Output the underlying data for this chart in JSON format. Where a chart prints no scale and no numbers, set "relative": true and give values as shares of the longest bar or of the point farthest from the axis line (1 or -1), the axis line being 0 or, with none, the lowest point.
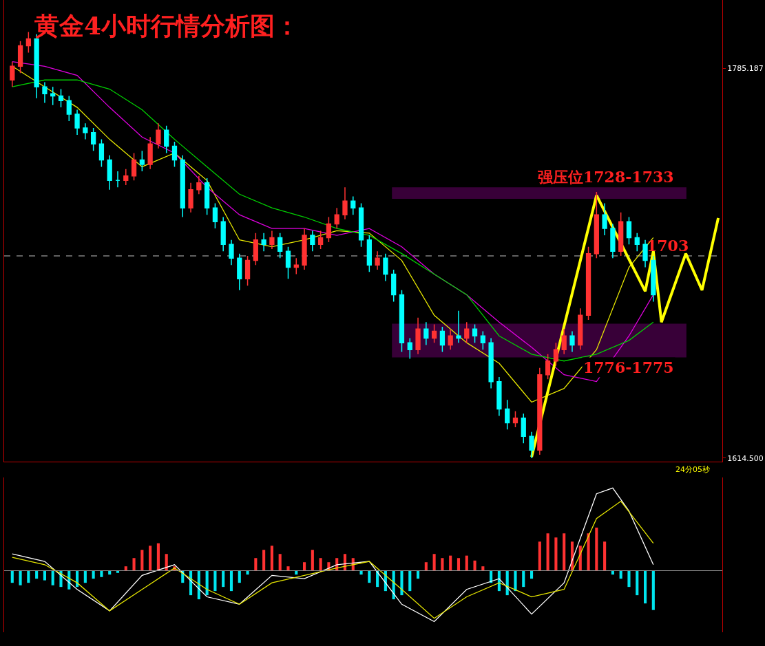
{
  "chart_data": [
    {
      "type": "candlestick",
      "title": "黄金4小时行情分析图：",
      "categories": [
        null,
        null,
        null,
        null,
        null,
        null,
        null,
        null,
        null,
        null,
        null,
        null,
        null,
        null,
        null,
        null,
        null,
        null,
        null,
        null,
        null,
        null,
        null,
        null,
        null,
        null,
        null,
        null,
        null,
        null,
        null,
        null,
        null,
        null,
        null,
        null,
        null,
        null,
        null,
        null,
        null,
        null,
        null,
        null,
        null,
        null,
        null,
        null,
        null,
        null,
        null,
        null,
        null,
        null,
        null,
        null,
        null,
        null,
        null,
        null,
        null,
        null,
        null,
        null,
        null,
        null,
        null,
        null,
        null,
        null,
        null,
        null,
        null,
        null,
        null,
        null,
        null,
        null,
        null,
        null,
        null,
        null,
        null,
        null,
        null,
        null,
        null,
        null
      ],
      "ylim": [
        1613,
        1815
      ],
      "yticks": [
        1785.187,
        {
          "value": 1614.5,
          "label": "1614.500"
        }
      ],
      "tick_labels": "y",
      "grid": false,
      "series": [
        {
          "ohlc": [
            [
              1780,
              1788,
              1777,
              1786
            ],
            [
              1786,
              1797,
              1783,
              1795
            ],
            [
              1795,
              1801,
              1792,
              1798
            ],
            [
              1798,
              1800,
              1772,
              1777
            ],
            [
              1777,
              1779,
              1770,
              1774
            ],
            [
              1774,
              1777,
              1769,
              1773
            ],
            [
              1773,
              1776,
              1768,
              1771
            ],
            [
              1771,
              1773,
              1762,
              1765
            ],
            [
              1765,
              1767,
              1756,
              1759
            ],
            [
              1759,
              1761,
              1754,
              1757
            ],
            [
              1757,
              1759,
              1749,
              1752
            ],
            [
              1752,
              1754,
              1742,
              1745
            ],
            [
              1745,
              1747,
              1732,
              1736
            ],
            [
              1736,
              1740,
              1733,
              1736
            ],
            [
              1736,
              1741,
              1734,
              1738
            ],
            [
              1738,
              1748,
              1736,
              1745
            ],
            [
              1745,
              1749,
              1740,
              1743
            ],
            [
              1743,
              1755,
              1741,
              1752
            ],
            [
              1752,
              1761,
              1750,
              1758
            ],
            [
              1758,
              1760,
              1748,
              1751
            ],
            [
              1751,
              1753,
              1742,
              1745
            ],
            [
              1745,
              1747,
              1720,
              1724
            ],
            [
              1724,
              1735,
              1722,
              1732
            ],
            [
              1732,
              1738,
              1730,
              1735
            ],
            [
              1735,
              1737,
              1721,
              1724
            ],
            [
              1724,
              1726,
              1715,
              1718
            ],
            [
              1718,
              1720,
              1705,
              1708
            ],
            [
              1708,
              1710,
              1699,
              1702
            ],
            [
              1702,
              1704,
              1688,
              1693
            ],
            [
              1693,
              1703,
              1690,
              1701
            ],
            [
              1701,
              1713,
              1699,
              1710
            ],
            [
              1710,
              1713,
              1705,
              1708
            ],
            [
              1708,
              1714,
              1706,
              1711
            ],
            [
              1711,
              1713,
              1702,
              1705
            ],
            [
              1705,
              1707,
              1693,
              1698
            ],
            [
              1698,
              1702,
              1695,
              1699
            ],
            [
              1699,
              1715,
              1697,
              1712
            ],
            [
              1712,
              1714,
              1705,
              1708
            ],
            [
              1708,
              1714,
              1706,
              1711
            ],
            [
              1711,
              1720,
              1709,
              1717
            ],
            [
              1717,
              1724,
              1715,
              1721
            ],
            [
              1721,
              1733,
              1719,
              1727
            ],
            [
              1727,
              1729,
              1721,
              1724
            ],
            [
              1724,
              1726,
              1707,
              1710
            ],
            [
              1710,
              1712,
              1696,
              1699
            ],
            [
              1699,
              1705,
              1697,
              1702
            ],
            [
              1702,
              1704,
              1692,
              1695
            ],
            [
              1695,
              1697,
              1683,
              1686
            ],
            [
              1686,
              1688,
              1661,
              1665
            ],
            [
              1665,
              1667,
              1658,
              1662
            ],
            [
              1662,
              1676,
              1660,
              1671
            ],
            [
              1671,
              1674,
              1664,
              1667
            ],
            [
              1667,
              1673,
              1665,
              1670
            ],
            [
              1670,
              1672,
              1661,
              1664
            ],
            [
              1664,
              1671,
              1662,
              1668
            ],
            [
              1668,
              1679,
              1665,
              1667
            ],
            [
              1667,
              1674,
              1665,
              1671
            ],
            [
              1671,
              1673,
              1665,
              1668
            ],
            [
              1668,
              1670,
              1662,
              1665
            ],
            [
              1665,
              1667,
              1645,
              1648
            ],
            [
              1648,
              1650,
              1633,
              1636
            ],
            [
              1636,
              1640,
              1627,
              1630
            ],
            [
              1630,
              1635,
              1628,
              1632
            ],
            [
              1632,
              1634,
              1621,
              1624
            ],
            [
              1624,
              1626,
              1614.5,
              1618
            ],
            [
              1618,
              1654,
              1616,
              1651
            ],
            [
              1651,
              1660,
              1649,
              1657
            ],
            [
              1657,
              1665,
              1655,
              1662
            ],
            [
              1662,
              1671,
              1660,
              1668
            ],
            [
              1668,
              1670,
              1661,
              1664
            ],
            [
              1664,
              1680,
              1662,
              1677
            ],
            [
              1677,
              1707,
              1675,
              1704
            ],
            [
              1704,
              1731,
              1702,
              1721
            ],
            [
              1721,
              1726,
              1712,
              1715
            ],
            [
              1715,
              1717,
              1702,
              1705
            ],
            [
              1705,
              1722,
              1703,
              1718
            ],
            [
              1718,
              1720,
              1708,
              1711
            ],
            [
              1711,
              1713,
              1705,
              1708
            ],
            [
              1708,
              1710,
              1698,
              1701
            ],
            [
              1701,
              1703,
              1683,
              1686
            ],
            null,
            null,
            null,
            null,
            null,
            null,
            null,
            null
          ],
          "colors": [
            "#ff3232",
            "#ff3232",
            "#ff3232",
            "#00ffff",
            "#00ffff",
            "#00ffff",
            "#00ffff",
            "#00ffff",
            "#00ffff",
            "#00ffff",
            "#00ffff",
            "#00ffff",
            "#00ffff",
            "#00ffff",
            "#ff3232",
            "#ff3232",
            "#00ffff",
            "#ff3232",
            "#ff3232",
            "#00ffff",
            "#00ffff",
            "#00ffff",
            "#ff3232",
            "#ff3232",
            "#00ffff",
            "#00ffff",
            "#00ffff",
            "#00ffff",
            "#00ffff",
            "#ff3232",
            "#ff3232",
            "#00ffff",
            "#ff3232",
            "#00ffff",
            "#00ffff",
            "#ff3232",
            "#ff3232",
            "#00ffff",
            "#ff3232",
            "#ff3232",
            "#ff3232",
            "#ff3232",
            "#00ffff",
            "#00ffff",
            "#00ffff",
            "#ff3232",
            "#00ffff",
            "#00ffff",
            "#00ffff",
            "#00ffff",
            "#ff3232",
            "#00ffff",
            "#ff3232",
            "#00ffff",
            "#ff3232",
            "#00ffff",
            "#ff3232",
            "#00ffff",
            "#00ffff",
            "#00ffff",
            "#00ffff",
            "#00ffff",
            "#ff3232",
            "#00ffff",
            "#00ffff",
            "#ff3232",
            "#ff3232",
            "#ff3232",
            "#ff3232",
            "#00ffff",
            "#ff3232",
            "#ff3232",
            "#ff3232",
            "#00ffff",
            "#00ffff",
            "#ff3232",
            "#00ffff",
            "#00ffff",
            "#00ffff",
            "#00ffff",
            null,
            null,
            null,
            null,
            null,
            null,
            null,
            null
          ]
        },
        {
          "type": "line",
          "color": "#e6e600",
          "values": [
            1786,
            null,
            null,
            null,
            1777,
            null,
            null,
            null,
            1768,
            null,
            null,
            null,
            1754,
            null,
            null,
            null,
            1742,
            null,
            null,
            null,
            1748,
            null,
            null,
            null,
            1736,
            null,
            null,
            null,
            1710,
            null,
            null,
            null,
            1707,
            null,
            null,
            null,
            1710,
            null,
            null,
            null,
            1714,
            null,
            null,
            null,
            1713,
            null,
            null,
            null,
            1701,
            null,
            null,
            null,
            1677,
            null,
            null,
            null,
            1665,
            null,
            null,
            null,
            1656,
            null,
            null,
            null,
            1639,
            null,
            null,
            null,
            1645,
            null,
            null,
            null,
            1662,
            null,
            null,
            null,
            1698,
            null,
            null,
            1711,
            null,
            null,
            null,
            null,
            null,
            null,
            null,
            null
          ]
        },
        {
          "type": "line",
          "color": "#e000e0",
          "values": [
            1788,
            null,
            null,
            null,
            1786,
            null,
            null,
            null,
            1782,
            null,
            null,
            null,
            1768,
            null,
            null,
            null,
            1755,
            null,
            null,
            null,
            1748,
            null,
            null,
            null,
            1733,
            null,
            null,
            null,
            1721,
            null,
            null,
            null,
            1715,
            null,
            null,
            null,
            1715,
            null,
            null,
            null,
            1712,
            null,
            null,
            null,
            1715,
            null,
            null,
            null,
            1707,
            null,
            null,
            null,
            1695,
            null,
            null,
            null,
            1686,
            null,
            null,
            null,
            1674,
            null,
            null,
            null,
            1663,
            null,
            null,
            null,
            1651,
            null,
            null,
            null,
            1648,
            null,
            null,
            null,
            1668,
            null,
            null,
            1686,
            null,
            null,
            null,
            null,
            null,
            null,
            null,
            null
          ]
        },
        {
          "type": "line",
          "color": "#00d000",
          "values": [
            1777,
            null,
            null,
            null,
            1780,
            null,
            null,
            null,
            1780,
            null,
            null,
            null,
            1776,
            null,
            null,
            null,
            1767,
            null,
            null,
            null,
            1754,
            null,
            null,
            null,
            1742,
            null,
            null,
            null,
            1730,
            null,
            null,
            null,
            1724,
            null,
            null,
            null,
            1720,
            null,
            null,
            null,
            1715,
            null,
            null,
            null,
            1712,
            null,
            null,
            null,
            1704,
            null,
            null,
            null,
            1695,
            null,
            null,
            null,
            1686,
            null,
            null,
            null,
            1668,
            null,
            null,
            null,
            1660,
            null,
            null,
            null,
            1657,
            null,
            null,
            null,
            1660,
            null,
            null,
            null,
            1666,
            null,
            null,
            1674,
            null,
            null,
            null,
            null,
            null,
            null,
            null,
            null
          ]
        },
        {
          "type": "line",
          "color": "#ffff00",
          "values": [
            null,
            null,
            null,
            null,
            null,
            null,
            null,
            null,
            null,
            null,
            null,
            null,
            null,
            null,
            null,
            null,
            null,
            null,
            null,
            null,
            null,
            null,
            null,
            null,
            null,
            null,
            null,
            null,
            null,
            null,
            null,
            null,
            null,
            null,
            null,
            null,
            null,
            null,
            null,
            null,
            null,
            null,
            null,
            null,
            null,
            null,
            null,
            null,
            null,
            null,
            null,
            null,
            null,
            null,
            null,
            null,
            null,
            null,
            null,
            null,
            null,
            null,
            null,
            null,
            1615,
            null,
            null,
            null,
            null,
            null,
            null,
            null,
            1729.5,
            null,
            null,
            null,
            null,
            null,
            1687.5,
            1705,
            1674,
            null,
            null,
            1704,
            null,
            1688,
            null,
            1719.6
          ]
        }
      ],
      "bands": [
        {
          "axis": "y",
          "from": 1728,
          "to": 1733,
          "label": "强压位1728-1733",
          "color": "#ff00ff"
        },
        {
          "axis": "y",
          "from": 1658.6,
          "to": 1673.3,
          "label": "1776-1775",
          "color": "#ff00ff"
        }
      ],
      "ref_lines": [
        {
          "axis": "y",
          "value": 1703,
          "label": "1703",
          "color": "#c0c0c0",
          "line_style": "dashed"
        }
      ],
      "annotations": [
        "24分05秒"
      ]
    },
    {
      "type": "line",
      "relative": true,
      "tick_labels": false,
      "grid": false,
      "categories": [
        null,
        null,
        null,
        null,
        null,
        null,
        null,
        null,
        null,
        null,
        null,
        null,
        null,
        null,
        null,
        null,
        null,
        null,
        null,
        null,
        null,
        null,
        null,
        null,
        null,
        null,
        null,
        null,
        null,
        null,
        null,
        null,
        null,
        null,
        null,
        null,
        null,
        null,
        null,
        null,
        null,
        null,
        null,
        null,
        null,
        null,
        null,
        null,
        null,
        null,
        null,
        null,
        null,
        null,
        null,
        null,
        null,
        null,
        null,
        null,
        null,
        null,
        null,
        null,
        null,
        null,
        null,
        null,
        null,
        null,
        null,
        null,
        null,
        null,
        null,
        null,
        null,
        null,
        null,
        null,
        null,
        null,
        null,
        null,
        null,
        null,
        null,
        null
      ],
      "series": [
        {
          "type": "bar",
          "values": [
            -0.15,
            -0.18,
            -0.15,
            -0.1,
            -0.12,
            -0.18,
            -0.2,
            -0.23,
            -0.2,
            -0.15,
            -0.1,
            -0.08,
            -0.05,
            -0.03,
            0.05,
            0.15,
            0.25,
            0.3,
            0.33,
            0.2,
            0.05,
            -0.15,
            -0.3,
            -0.35,
            -0.3,
            -0.25,
            -0.2,
            -0.25,
            -0.15,
            -0.05,
            0.15,
            0.25,
            0.3,
            0.2,
            0.05,
            -0.05,
            0.1,
            0.25,
            0.15,
            0.1,
            0.15,
            0.2,
            0.15,
            -0.05,
            -0.15,
            -0.2,
            -0.25,
            -0.35,
            -0.3,
            -0.25,
            -0.1,
            0.1,
            0.2,
            0.15,
            0.18,
            0.15,
            0.18,
            0.12,
            0.05,
            -0.15,
            -0.25,
            -0.3,
            -0.25,
            -0.2,
            -0.1,
            0.35,
            0.45,
            0.4,
            0.45,
            0.35,
            0.3,
            0.45,
            0.52,
            0.35,
            -0.05,
            -0.1,
            -0.2,
            -0.3,
            -0.4,
            -0.48,
            null,
            null,
            null,
            null,
            null,
            null,
            null,
            null
          ],
          "colors": [
            "#00e5ee",
            "#00e5ee",
            "#00e5ee",
            "#00e5ee",
            "#00e5ee",
            "#00e5ee",
            "#00e5ee",
            "#00e5ee",
            "#00e5ee",
            "#00e5ee",
            "#00e5ee",
            "#00e5ee",
            "#00e5ee",
            "#00e5ee",
            "#ff3232",
            "#ff3232",
            "#ff3232",
            "#ff3232",
            "#ff3232",
            "#ff3232",
            "#ff3232",
            "#00e5ee",
            "#00e5ee",
            "#00e5ee",
            "#00e5ee",
            "#00e5ee",
            "#00e5ee",
            "#00e5ee",
            "#00e5ee",
            "#00e5ee",
            "#ff3232",
            "#ff3232",
            "#ff3232",
            "#ff3232",
            "#ff3232",
            "#00e5ee",
            "#ff3232",
            "#ff3232",
            "#ff3232",
            "#ff3232",
            "#ff3232",
            "#ff3232",
            "#ff3232",
            "#00e5ee",
            "#00e5ee",
            "#00e5ee",
            "#00e5ee",
            "#00e5ee",
            "#00e5ee",
            "#00e5ee",
            "#00e5ee",
            "#ff3232",
            "#ff3232",
            "#ff3232",
            "#ff3232",
            "#ff3232",
            "#ff3232",
            "#ff3232",
            "#ff3232",
            "#00e5ee",
            "#00e5ee",
            "#00e5ee",
            "#00e5ee",
            "#00e5ee",
            "#00e5ee",
            "#ff3232",
            "#ff3232",
            "#ff3232",
            "#ff3232",
            "#ff3232",
            "#ff3232",
            "#ff3232",
            "#ff3232",
            "#ff3232",
            "#00e5ee",
            "#00e5ee",
            "#00e5ee",
            "#00e5ee",
            "#00e5ee",
            "#00e5ee",
            null,
            null,
            null,
            null,
            null,
            null,
            null,
            null
          ]
        },
        {
          "color": "#ffffff",
          "values": [
            0.2,
            null,
            null,
            null,
            0.11,
            null,
            null,
            null,
            -0.23,
            null,
            null,
            null,
            -0.49,
            null,
            null,
            null,
            -0.06,
            null,
            null,
            null,
            0.07,
            null,
            null,
            null,
            -0.32,
            null,
            null,
            null,
            -0.41,
            null,
            null,
            null,
            -0.06,
            null,
            null,
            null,
            -0.1,
            null,
            null,
            null,
            0.07,
            null,
            null,
            null,
            0.11,
            null,
            null,
            null,
            -0.41,
            null,
            null,
            null,
            -0.62,
            null,
            null,
            null,
            -0.23,
            null,
            null,
            null,
            -0.1,
            null,
            null,
            null,
            -0.53,
            null,
            null,
            null,
            -0.15,
            null,
            null,
            null,
            0.93,
            null,
            1.0,
            null,
            0.72,
            null,
            null,
            0.07,
            null,
            null,
            null,
            null,
            null,
            null,
            null,
            null
          ]
        },
        {
          "color": "#e6e600",
          "values": [
            0.16,
            null,
            null,
            null,
            0.07,
            null,
            null,
            null,
            -0.15,
            null,
            null,
            null,
            -0.49,
            null,
            null,
            null,
            -0.23,
            null,
            null,
            null,
            0.03,
            null,
            null,
            null,
            -0.23,
            null,
            null,
            null,
            -0.41,
            null,
            null,
            null,
            -0.15,
            null,
            null,
            null,
            -0.06,
            null,
            null,
            null,
            0.03,
            null,
            null,
            null,
            0.11,
            null,
            null,
            null,
            -0.23,
            null,
            null,
            null,
            -0.58,
            null,
            null,
            null,
            -0.32,
            null,
            null,
            null,
            -0.15,
            null,
            null,
            null,
            -0.32,
            null,
            null,
            null,
            -0.23,
            null,
            null,
            null,
            0.63,
            null,
            null,
            0.84,
            null,
            null,
            null,
            0.33,
            null,
            null,
            null,
            null,
            null,
            null,
            null,
            null
          ]
        }
      ]
    }
  ]
}
